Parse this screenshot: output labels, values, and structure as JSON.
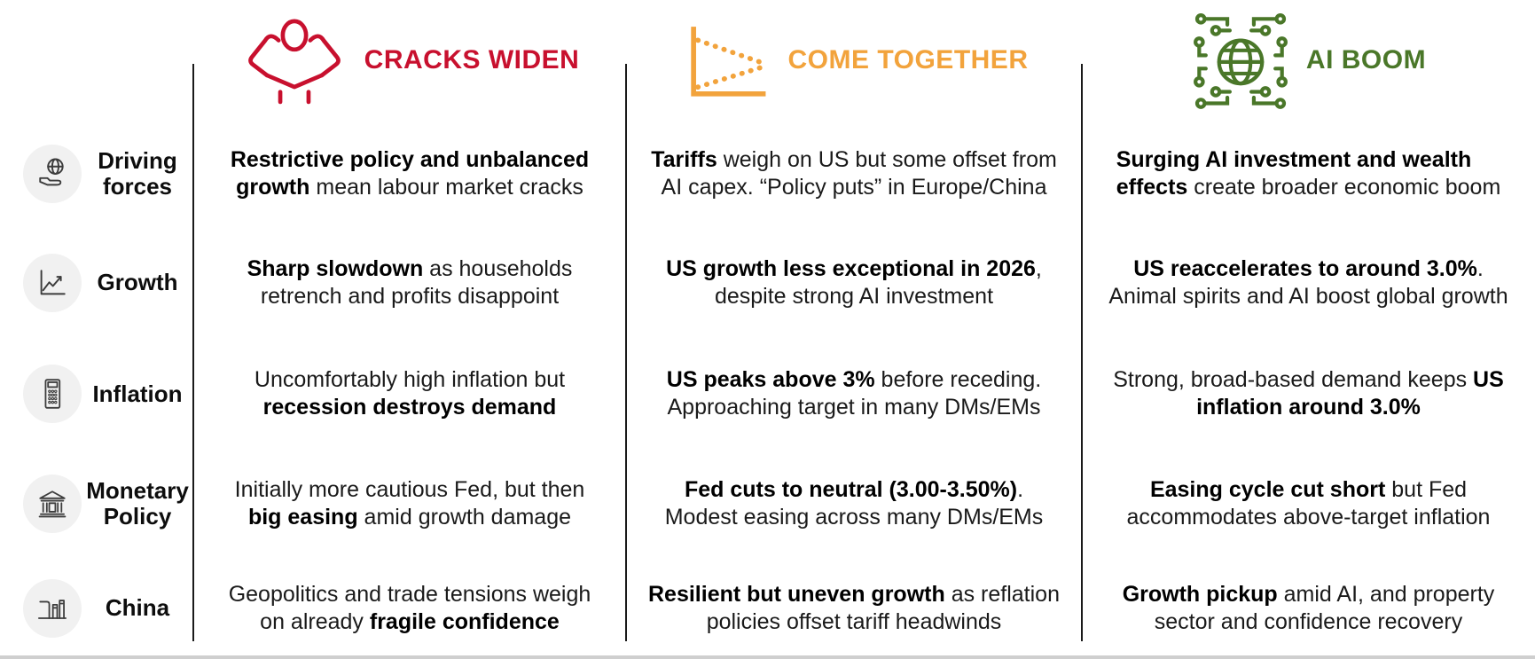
{
  "scenarios_table": {
    "row_icon_color": "#3d3d3d",
    "columns": [
      {
        "title": "CRACKS WIDEN",
        "color": "#C8102E",
        "icon": "stressed-person-icon"
      },
      {
        "title": "COME TOGETHER",
        "color": "#F2A33C",
        "icon": "converging-trend-lines-icon"
      },
      {
        "title": "AI BOOM",
        "color": "#4A7729",
        "icon": "ai-globe-circuit-icon"
      }
    ],
    "rows": [
      {
        "label": "Driving forces",
        "icon": "hand-holding-globe-icon",
        "cells": [
          {
            "segments": [
              {
                "text": "Restrictive policy and unbalanced",
                "bold": true
              },
              {
                "br": true
              },
              {
                "text": "growth",
                "bold": true
              },
              {
                "text": " mean labour market cracks",
                "bold": false
              }
            ]
          },
          {
            "segments": [
              {
                "text": "Tariffs",
                "bold": true
              },
              {
                "text": " weigh on US but some offset from",
                "bold": false
              },
              {
                "br": true
              },
              {
                "text": "AI capex. “Policy puts” in Europe/China",
                "bold": false
              }
            ]
          },
          {
            "align": "left",
            "segments": [
              {
                "text": "Surging AI investment and wealth",
                "bold": true
              },
              {
                "br": true
              },
              {
                "text": "effects",
                "bold": true
              },
              {
                "text": " create broader economic boom",
                "bold": false
              }
            ]
          }
        ]
      },
      {
        "label": "Growth",
        "icon": "line-chart-icon",
        "cells": [
          {
            "segments": [
              {
                "text": "Sharp slowdown",
                "bold": true
              },
              {
                "text": " as households",
                "bold": false
              },
              {
                "br": true
              },
              {
                "text": "retrench and profits disappoint",
                "bold": false
              }
            ]
          },
          {
            "segments": [
              {
                "text": "US growth less exceptional in 2026",
                "bold": true
              },
              {
                "text": ",",
                "bold": false
              },
              {
                "br": true
              },
              {
                "text": "despite strong AI investment",
                "bold": false
              }
            ]
          },
          {
            "segments": [
              {
                "text": "US reaccelerates to around 3.0%",
                "bold": true
              },
              {
                "text": ".",
                "bold": false
              },
              {
                "br": true
              },
              {
                "text": "Animal spirits and AI boost global growth",
                "bold": false
              }
            ]
          }
        ]
      },
      {
        "label": "Inflation",
        "icon": "calculator-icon",
        "cells": [
          {
            "segments": [
              {
                "text": "Uncomfortably high inflation but",
                "bold": false
              },
              {
                "br": true
              },
              {
                "text": "recession destroys demand",
                "bold": true
              }
            ]
          },
          {
            "segments": [
              {
                "text": "US peaks above 3%",
                "bold": true
              },
              {
                "text": " before receding.",
                "bold": false
              },
              {
                "br": true
              },
              {
                "text": "Approaching target in many DMs/EMs",
                "bold": false
              }
            ]
          },
          {
            "segments": [
              {
                "text": "Strong, broad-based demand keeps ",
                "bold": false
              },
              {
                "text": "US",
                "bold": true
              },
              {
                "br": true
              },
              {
                "text": "inflation around 3.0%",
                "bold": true
              }
            ]
          }
        ]
      },
      {
        "label": "Monetary Policy",
        "icon": "bank-icon",
        "cells": [
          {
            "segments": [
              {
                "text": "Initially more cautious Fed, but then",
                "bold": false
              },
              {
                "br": true
              },
              {
                "text": "big easing",
                "bold": true
              },
              {
                "text": " amid growth damage",
                "bold": false
              }
            ]
          },
          {
            "segments": [
              {
                "text": "Fed cuts to neutral (3.00-3.50%)",
                "bold": true
              },
              {
                "text": ".",
                "bold": false
              },
              {
                "br": true
              },
              {
                "text": "Modest easing across many DMs/EMs",
                "bold": false
              }
            ]
          },
          {
            "segments": [
              {
                "text": "Easing cycle cut short",
                "bold": true
              },
              {
                "text": " but Fed",
                "bold": false
              },
              {
                "br": true
              },
              {
                "text": "accommodates above-target inflation",
                "bold": false
              }
            ]
          }
        ]
      },
      {
        "label": "China",
        "icon": "factory-icon",
        "cells": [
          {
            "segments": [
              {
                "text": "Geopolitics and trade tensions weigh",
                "bold": false
              },
              {
                "br": true
              },
              {
                "text": "on already ",
                "bold": false
              },
              {
                "text": "fragile confidence",
                "bold": true
              }
            ]
          },
          {
            "segments": [
              {
                "text": "Resilient but uneven growth",
                "bold": true
              },
              {
                "text": " as reflation",
                "bold": false
              },
              {
                "br": true
              },
              {
                "text": "policies offset tariff headwinds",
                "bold": false
              }
            ]
          },
          {
            "segments": [
              {
                "text": "Growth pickup",
                "bold": true
              },
              {
                "text": " amid AI, and property",
                "bold": false
              },
              {
                "br": true
              },
              {
                "text": "sector and confidence recovery",
                "bold": false
              }
            ]
          }
        ]
      }
    ]
  }
}
